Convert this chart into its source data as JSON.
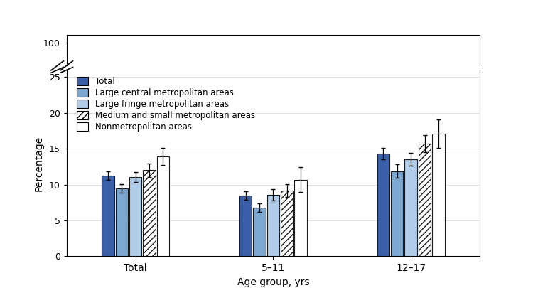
{
  "groups": [
    "Total",
    "5–11",
    "12–17"
  ],
  "categories": [
    "Total",
    "Large central metropolitan areas",
    "Large fringe metropolitan areas",
    "Medium and small metropolitan areas",
    "Nonmetropolitan areas"
  ],
  "values": [
    [
      11.3,
      9.5,
      11.1,
      12.0,
      13.9
    ],
    [
      8.5,
      6.8,
      8.6,
      9.2,
      10.7
    ],
    [
      14.3,
      11.9,
      13.5,
      15.7,
      17.1
    ]
  ],
  "errors": [
    [
      0.6,
      0.6,
      0.7,
      0.9,
      1.2
    ],
    [
      0.6,
      0.6,
      0.8,
      0.9,
      1.7
    ],
    [
      0.8,
      0.9,
      0.9,
      1.2,
      2.0
    ]
  ],
  "colors": [
    "#3A5FA8",
    "#7BA7D0",
    "#B0CCE8",
    "white",
    "white"
  ],
  "hatches": [
    "",
    "",
    "",
    "////",
    ""
  ],
  "edgecolors": [
    "#1a1a1a",
    "#1a1a1a",
    "#1a1a1a",
    "#1a1a1a",
    "#1a1a1a"
  ],
  "ylabel": "Percentage",
  "xlabel": "Age group, yrs",
  "ylim_lower": [
    0,
    25
  ],
  "ylim_upper": [
    95,
    100
  ],
  "yticks_lower": [
    0,
    5,
    10,
    15,
    20,
    25
  ],
  "bar_width": 0.09,
  "background_color": "#ffffff",
  "legend_labels": [
    "Total",
    "Large central metropolitan areas",
    "Large fringe metropolitan areas",
    "Medium and small metropolitan areas",
    "Nonmetropolitan areas"
  ],
  "group_centers": [
    1,
    2,
    3
  ],
  "group_labels": [
    "Total",
    "5–11",
    "12–17"
  ]
}
